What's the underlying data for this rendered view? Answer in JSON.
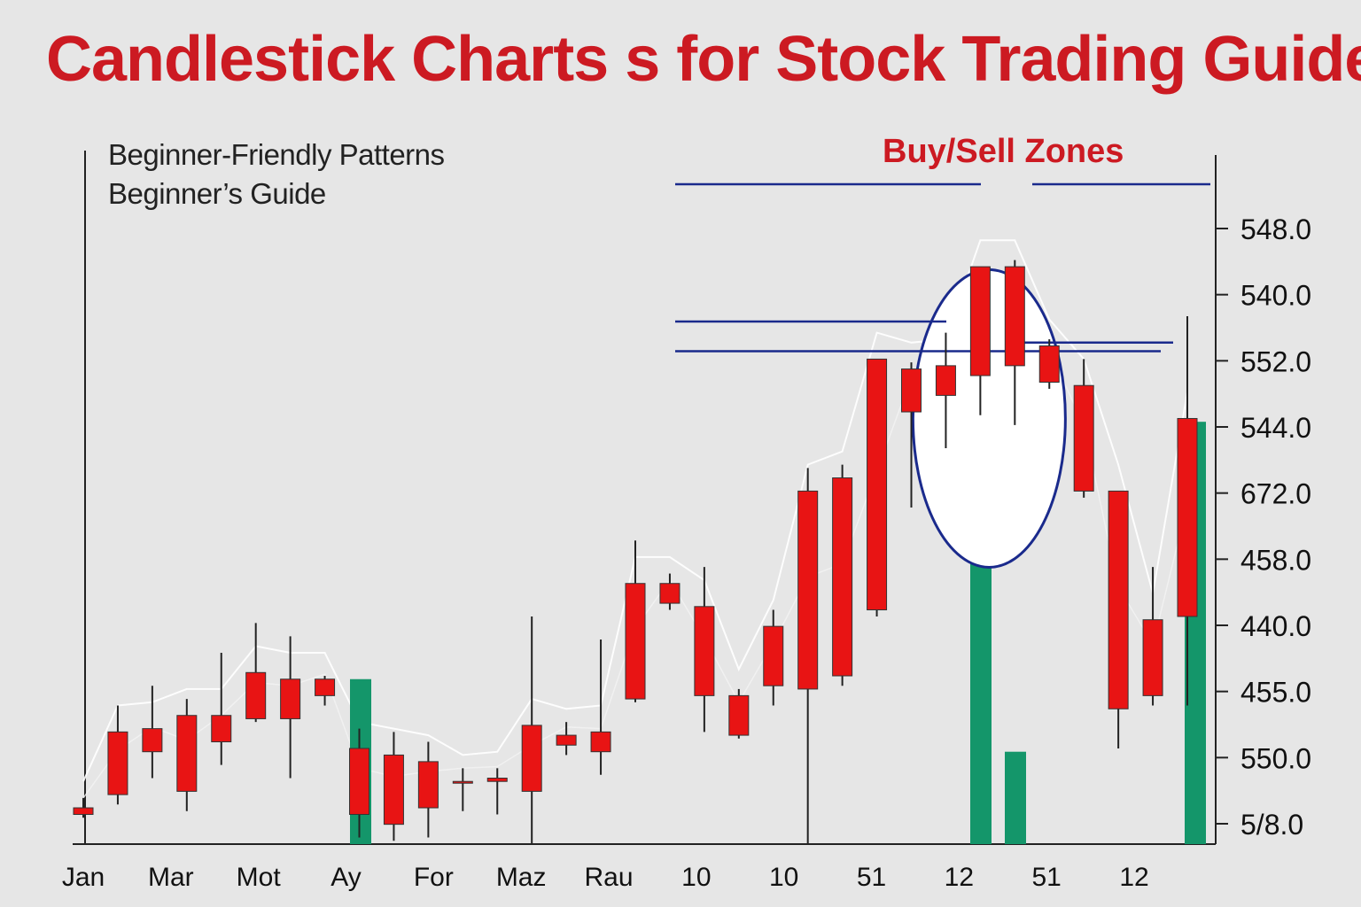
{
  "title": "Candlestick Charts s for Stock Trading Guide",
  "subtitles": [
    "Beginner-Friendly Patterns",
    "Beginner’s Guide"
  ],
  "zone_label": "Buy/Sell  Zones",
  "colors": {
    "bull": "#e81414",
    "bear": "#b6ecd4",
    "volume": "#14966a",
    "zone": "#1a2a8c",
    "title": "#cc1a22"
  },
  "chart_data": {
    "type": "bar",
    "title": "Candlestick Charts s for Stock Trading Guide",
    "xlabel": "",
    "ylabel": "",
    "x_tick_labels": [
      "Jan",
      "Mar",
      "Mot",
      "Ay",
      "For",
      "Maz",
      "Rau",
      "10",
      "10",
      "51",
      "12",
      "51",
      "12"
    ],
    "y_tick_labels": [
      "548.0",
      "540.0",
      "552.0",
      "544.0",
      "672.0",
      "458.0",
      "440.0",
      "455.0",
      "550.0",
      "5/8.0"
    ],
    "ylim": [
      0,
      100
    ],
    "grid": false,
    "annotations": [
      "Buy/Sell  Zones"
    ],
    "candles": [
      {
        "o": 5.5,
        "c": 4.5,
        "h": 7,
        "l": 4
      },
      {
        "o": 17,
        "c": 7.5,
        "h": 21,
        "l": 6
      },
      {
        "o": 17.5,
        "c": 14,
        "h": 24,
        "l": 10
      },
      {
        "o": 19.5,
        "c": 8,
        "h": 22,
        "l": 5
      },
      {
        "o": 19.5,
        "c": 15.5,
        "h": 29,
        "l": 12
      },
      {
        "o": 26,
        "c": 19,
        "h": 33.5,
        "l": 18.5
      },
      {
        "o": 25,
        "c": 19,
        "h": 31.5,
        "l": 10
      },
      {
        "o": 25,
        "c": 22.5,
        "h": 25.5,
        "l": 21
      },
      {
        "o": 14.5,
        "c": 4.5,
        "h": 17.5,
        "l": 1
      },
      {
        "o": 13.5,
        "c": 3,
        "h": 17,
        "l": 0.5
      },
      {
        "o": 12.5,
        "c": 5.5,
        "h": 15.5,
        "l": 1
      },
      {
        "o": 9.5,
        "c": 9.5,
        "h": 11.5,
        "l": 5
      },
      {
        "o": 10,
        "c": 9.5,
        "h": 11.5,
        "l": 4.5
      },
      {
        "o": 18,
        "c": 8,
        "h": 34.5,
        "l": 0
      },
      {
        "o": 16.5,
        "c": 15,
        "h": 18.5,
        "l": 13.5
      },
      {
        "o": 17,
        "c": 14,
        "h": 31,
        "l": 10.5
      },
      {
        "o": 39.5,
        "c": 22,
        "h": 46,
        "l": 21.5
      },
      {
        "o": 39.5,
        "c": 36.5,
        "h": 41,
        "l": 35.5
      },
      {
        "o": 36,
        "c": 22.5,
        "h": 42,
        "l": 17
      },
      {
        "o": 22.5,
        "c": 16.5,
        "h": 23.5,
        "l": 16
      },
      {
        "o": 33,
        "c": 24,
        "h": 35.5,
        "l": 21
      },
      {
        "o": 53.5,
        "c": 23.5,
        "h": 57,
        "l": 0
      },
      {
        "o": 55.5,
        "c": 25.5,
        "h": 57.5,
        "l": 24
      },
      {
        "o": 73.5,
        "c": 35.5,
        "h": 73.5,
        "l": 34.5
      },
      {
        "o": 72,
        "c": 65.5,
        "h": 73,
        "l": 51
      },
      {
        "o": 72.5,
        "c": 68,
        "h": 77.5,
        "l": 60
      },
      {
        "o": 87.5,
        "c": 71,
        "h": 87.5,
        "l": 65
      },
      {
        "o": 87.5,
        "c": 72.5,
        "h": 88.5,
        "l": 63.5
      },
      {
        "o": 75.5,
        "c": 70,
        "h": 76.5,
        "l": 69
      },
      {
        "o": 69.5,
        "c": 53.5,
        "h": 73.5,
        "l": 52.5
      },
      {
        "o": 53.5,
        "c": 20.5,
        "h": 53.5,
        "l": 14.5
      },
      {
        "o": 34,
        "c": 22.5,
        "h": 42,
        "l": 21
      },
      {
        "o": 64.5,
        "c": 34.5,
        "h": 80,
        "l": 21
      }
    ],
    "volume_bars": [
      25,
      48,
      14,
      64
    ]
  }
}
